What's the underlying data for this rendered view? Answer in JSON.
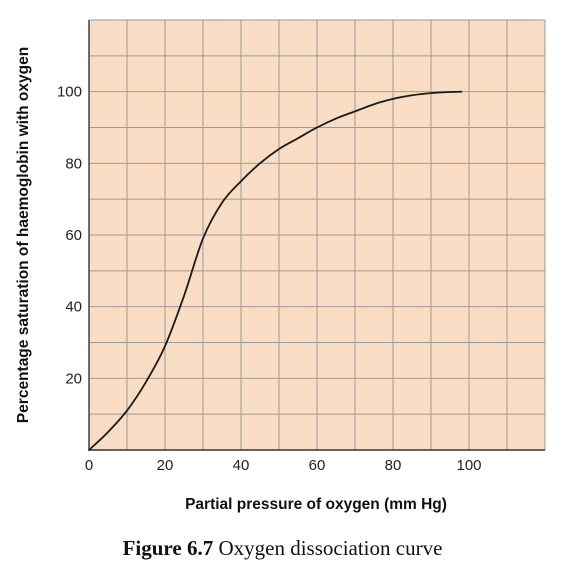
{
  "chart_data": {
    "type": "line",
    "title": "",
    "xlabel": "Partial pressure of oxygen (mm Hg)",
    "ylabel": "Percentage saturation of haemoglobin with oxygen",
    "xlim": [
      0,
      120
    ],
    "ylim": [
      0,
      120
    ],
    "xticks": [
      0,
      20,
      40,
      60,
      80,
      100
    ],
    "yticks": [
      20,
      40,
      60,
      80,
      100
    ],
    "grid": true,
    "grid_step_x": 10,
    "grid_step_y": 10,
    "colors": {
      "plot_background": "#f9dcc4",
      "grid": "#9a9a9a",
      "line": "#1a1a1a"
    },
    "series": [
      {
        "x": [
          0,
          5,
          10,
          15,
          20,
          25,
          30,
          35,
          40,
          45,
          50,
          55,
          60,
          65,
          70,
          75,
          80,
          85,
          90,
          95,
          98
        ],
        "y": [
          0,
          5,
          11,
          19,
          29,
          43,
          59,
          69,
          75,
          80,
          84,
          87,
          90,
          92.5,
          94.5,
          96.5,
          98,
          99,
          99.6,
          99.9,
          100
        ]
      }
    ]
  },
  "caption": {
    "label": "Figure 6.7",
    "text": "Oxygen dissociation curve"
  }
}
